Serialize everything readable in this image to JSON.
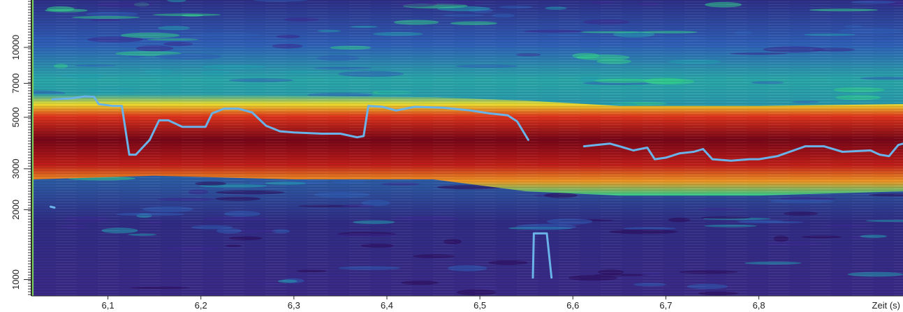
{
  "chart_data": {
    "type": "heatmap",
    "title": "",
    "xlabel": "Zeit (s)",
    "ylabel": "",
    "x_ticks": [
      "6,1",
      "6,2",
      "6,3",
      "6,4",
      "6,5",
      "6,6",
      "6,7",
      "6,8"
    ],
    "x_tick_values": [
      6.1,
      6.2,
      6.3,
      6.4,
      6.5,
      6.6,
      6.7,
      6.8
    ],
    "y_ticks": [
      "1000",
      "2000",
      "3000",
      "5000",
      "7000",
      "10000"
    ],
    "y_tick_values": [
      1000,
      2000,
      3000,
      5000,
      7000,
      10000
    ],
    "xlim": [
      6.02,
      6.955
    ],
    "ylim": [
      850,
      16000
    ],
    "y_scale": "log",
    "colormap": [
      "#2b0a5a",
      "#3b2a8f",
      "#2f5fb6",
      "#23a0b0",
      "#33d08a",
      "#a8ef3a",
      "#f4e02a",
      "#f79a1e",
      "#e83015",
      "#9a0010",
      "#5a0008"
    ],
    "energy_band": {
      "description_values": [
        {
          "x": 6.02,
          "low": 2700,
          "high": 6300
        },
        {
          "x": 6.15,
          "low": 2800,
          "high": 6300
        },
        {
          "x": 6.3,
          "low": 2700,
          "high": 6200
        },
        {
          "x": 6.45,
          "low": 2700,
          "high": 6100
        },
        {
          "x": 6.55,
          "low": 2400,
          "high": 5900
        },
        {
          "x": 6.65,
          "low": 2300,
          "high": 5600
        },
        {
          "x": 6.8,
          "low": 2300,
          "high": 5600
        },
        {
          "x": 6.955,
          "low": 2400,
          "high": 5700
        }
      ]
    },
    "series": [
      {
        "color": "#6ab3e8",
        "segments": [
          [
            [
              6.0384,
              2060
            ],
            [
              6.0425,
              2040
            ]
          ],
          [
            [
              6.0405,
              5980
            ],
            [
              6.06,
              6030
            ],
            [
              6.075,
              6150
            ],
            [
              6.085,
              6130
            ],
            [
              6.09,
              5700
            ],
            [
              6.105,
              5600
            ],
            [
              6.115,
              5600
            ],
            [
              6.123,
              3450
            ],
            [
              6.13,
              3450
            ],
            [
              6.145,
              4000
            ],
            [
              6.155,
              4850
            ],
            [
              6.165,
              4850
            ],
            [
              6.18,
              4550
            ],
            [
              6.2,
              4550
            ],
            [
              6.205,
              4550
            ],
            [
              6.212,
              5200
            ],
            [
              6.225,
              5450
            ],
            [
              6.24,
              5450
            ],
            [
              6.255,
              5250
            ],
            [
              6.27,
              4600
            ],
            [
              6.285,
              4350
            ],
            [
              6.3,
              4300
            ],
            [
              6.33,
              4250
            ],
            [
              6.35,
              4250
            ],
            [
              6.368,
              4100
            ],
            [
              6.375,
              4150
            ],
            [
              6.38,
              5600
            ],
            [
              6.395,
              5550
            ],
            [
              6.41,
              5350
            ],
            [
              6.43,
              5550
            ],
            [
              6.46,
              5500
            ],
            [
              6.49,
              5350
            ],
            [
              6.51,
              5200
            ],
            [
              6.53,
              5100
            ],
            [
              6.54,
              4800
            ],
            [
              6.552,
              4000
            ]
          ],
          [
            [
              6.557,
              1020
            ],
            [
              6.558,
              1580
            ],
            [
              6.572,
              1580
            ],
            [
              6.577,
              1020
            ]
          ],
          [
            [
              6.612,
              3750
            ],
            [
              6.625,
              3800
            ],
            [
              6.64,
              3850
            ],
            [
              6.655,
              3700
            ],
            [
              6.665,
              3600
            ],
            [
              6.68,
              3700
            ],
            [
              6.688,
              3300
            ],
            [
              6.7,
              3350
            ],
            [
              6.715,
              3500
            ],
            [
              6.73,
              3550
            ],
            [
              6.74,
              3650
            ],
            [
              6.75,
              3300
            ],
            [
              6.77,
              3250
            ],
            [
              6.79,
              3300
            ],
            [
              6.8,
              3300
            ],
            [
              6.82,
              3400
            ],
            [
              6.85,
              3750
            ],
            [
              6.87,
              3750
            ],
            [
              6.89,
              3550
            ],
            [
              6.92,
              3600
            ],
            [
              6.93,
              3450
            ],
            [
              6.94,
              3400
            ],
            [
              6.95,
              3800
            ],
            [
              6.955,
              3850
            ]
          ]
        ]
      }
    ]
  }
}
